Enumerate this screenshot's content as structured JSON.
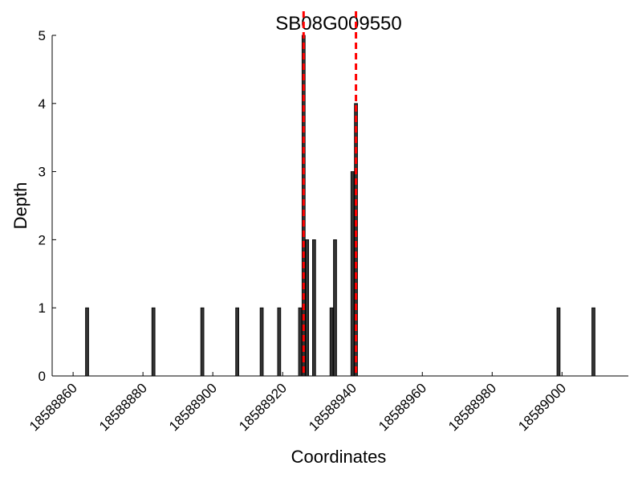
{
  "chart_data": {
    "type": "bar",
    "title": "SB08G009550",
    "xlabel": "Coordinates",
    "ylabel": "Depth",
    "x": [
      18588864,
      18588883,
      18588897,
      18588907,
      18588914,
      18588919,
      18588925,
      18588926,
      18588927,
      18588929,
      18588934,
      18588935,
      18588940,
      18588941,
      18588999,
      18589009
    ],
    "values": [
      1,
      1,
      1,
      1,
      1,
      1,
      1,
      5,
      2,
      2,
      1,
      2,
      3,
      4,
      1,
      1
    ],
    "color": "#333333",
    "vlines": [
      18588926,
      18588941
    ],
    "vline_color": "#ff0000",
    "xlim": [
      18588854,
      18589019
    ],
    "xticks": [
      18588860,
      18588880,
      18588900,
      18588920,
      18588940,
      18588960,
      18588980,
      18589000
    ],
    "ylim": [
      0,
      5
    ],
    "yticks": [
      0,
      1,
      2,
      3,
      4,
      5
    ],
    "grid": false
  }
}
